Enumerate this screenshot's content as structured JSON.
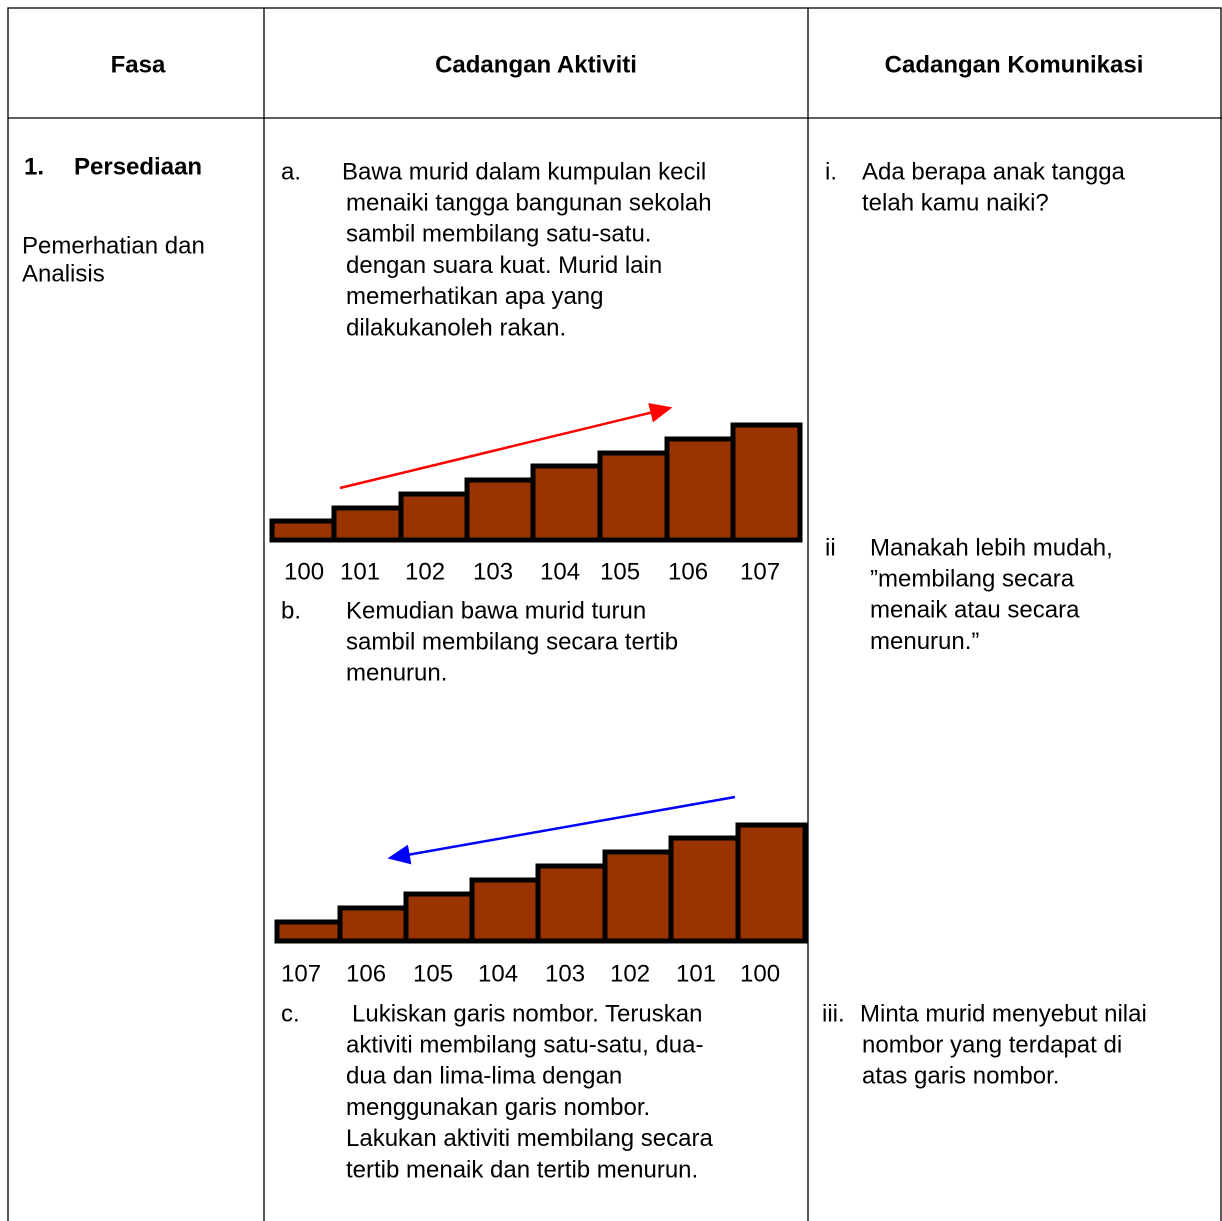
{
  "table": {
    "headers": [
      "Fasa",
      "Cadangan Aktiviti",
      "Cadangan Komunikasi"
    ],
    "phase": {
      "number": "1.",
      "title": "Persediaan",
      "subtitle_lines": [
        "Pemerhatian dan",
        "Analisis"
      ]
    },
    "activities": [
      {
        "marker": "a.",
        "lines": [
          "Bawa murid dalam kumpulan kecil",
          "menaiki tangga bangunan sekolah",
          "sambil membilang satu-satu.",
          "dengan suara kuat. Murid lain",
          "memerhatikan apa yang",
          "dilakukanoleh rakan."
        ]
      },
      {
        "marker": "b.",
        "lines": [
          "Kemudian bawa murid turun",
          "sambil membilang secara tertib",
          "menurun."
        ]
      },
      {
        "marker": "c.",
        "lines": [
          "Lukiskan garis nombor. Teruskan",
          "aktiviti membilang satu-satu, dua-",
          "dua dan lima-lima dengan",
          "menggunakan garis nombor.",
          "Lakukan aktiviti membilang secara",
          "tertib menaik dan tertib menurun."
        ]
      }
    ],
    "staircase_up_labels": [
      "100",
      "101",
      "102",
      "103",
      "104",
      "105",
      "106",
      "107"
    ],
    "staircase_down_labels": [
      "107",
      "106",
      "105",
      "104",
      "103",
      "102",
      "101",
      "100"
    ],
    "questions": [
      {
        "marker": "i.",
        "lines": [
          "Ada berapa anak tangga",
          "telah kamu naiki?"
        ]
      },
      {
        "marker": "ii",
        "lines": [
          "Manakah lebih mudah,",
          "”membilang secara",
          "menaik atau secara",
          "menurun.”"
        ]
      },
      {
        "marker": "iii.",
        "lines": [
          "Minta murid menyebut nilai",
          "nombor yang terdapat di",
          "atas garis nombor."
        ]
      }
    ]
  }
}
